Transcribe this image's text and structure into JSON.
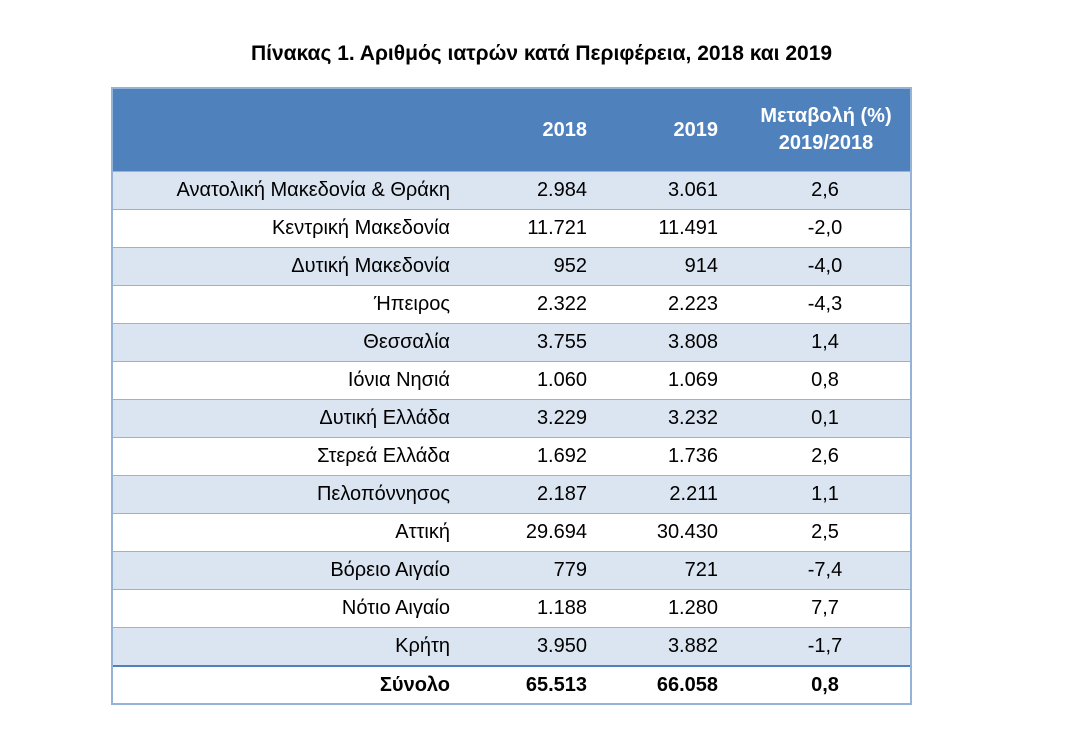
{
  "title": "Πίνακας 1. Αριθμός ιατρών κατά Περιφέρεια, 2018 και 2019",
  "columns": {
    "region": "",
    "y2018": "2018",
    "y2019": "2019",
    "change_line1": "Μεταβολή (%)",
    "change_line2": "2019/2018"
  },
  "rows": [
    {
      "region": "Ανατολική Μακεδονία & Θράκη",
      "y2018": "2.984",
      "y2019": "3.061",
      "change": "2,6"
    },
    {
      "region": "Κεντρική Μακεδονία",
      "y2018": "11.721",
      "y2019": "11.491",
      "change": "-2,0"
    },
    {
      "region": "Δυτική Μακεδονία",
      "y2018": "952",
      "y2019": "914",
      "change": "-4,0"
    },
    {
      "region": "Ήπειρος",
      "y2018": "2.322",
      "y2019": "2.223",
      "change": "-4,3"
    },
    {
      "region": "Θεσσαλία",
      "y2018": "3.755",
      "y2019": "3.808",
      "change": "1,4"
    },
    {
      "region": "Ιόνια Νησιά",
      "y2018": "1.060",
      "y2019": "1.069",
      "change": "0,8"
    },
    {
      "region": "Δυτική Ελλάδα",
      "y2018": "3.229",
      "y2019": "3.232",
      "change": "0,1"
    },
    {
      "region": "Στερεά Ελλάδα",
      "y2018": "1.692",
      "y2019": "1.736",
      "change": "2,6"
    },
    {
      "region": "Πελοπόννησος",
      "y2018": "2.187",
      "y2019": "2.211",
      "change": "1,1"
    },
    {
      "region": "Αττική",
      "y2018": "29.694",
      "y2019": "30.430",
      "change": "2,5"
    },
    {
      "region": "Βόρειο Αιγαίο",
      "y2018": "779",
      "y2019": "721",
      "change": "-7,4"
    },
    {
      "region": "Νότιο Αιγαίο",
      "y2018": "1.188",
      "y2019": "1.280",
      "change": "7,7"
    },
    {
      "region": "Κρήτη",
      "y2018": "3.950",
      "y2019": "3.882",
      "change": "-1,7"
    }
  ],
  "total": {
    "region": "Σύνολο",
    "y2018": "65.513",
    "y2019": "66.058",
    "change": "0,8"
  },
  "colors": {
    "header_bg": "#4f81bd",
    "band_bg": "#dbe5f1",
    "border": "#95b3d7"
  }
}
